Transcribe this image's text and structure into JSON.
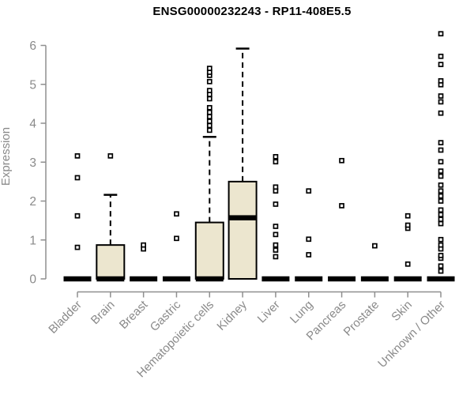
{
  "chart_data": {
    "type": "boxplot",
    "title": "ENSG00000232243 - RP11-408E5.5",
    "ylabel": "Expression",
    "xlabel": "",
    "ylim": [
      0,
      6
    ],
    "yticks": [
      0,
      1,
      2,
      3,
      4,
      5,
      6
    ],
    "grid": false,
    "legend": "none",
    "axis_color": "#8f8f8f",
    "label_color": "#8a8a8a",
    "box_fill": "#ece6cf",
    "box_stroke": "#000000",
    "categories": [
      "Bladder",
      "Brain",
      "Breast",
      "Gastric",
      "Hematopoietic cells",
      "Kidney",
      "Liver",
      "Lung",
      "Pancreas",
      "Prostate",
      "Skin",
      "Unknown / Other"
    ],
    "series": [
      {
        "category": "Bladder",
        "q1": 0,
        "median": 0,
        "q3": 0,
        "whisker_low": 0,
        "whisker_high": 0,
        "outliers": [
          0.81,
          1.62,
          2.6,
          3.16
        ]
      },
      {
        "category": "Brain",
        "q1": 0,
        "median": 0,
        "q3": 0.87,
        "whisker_low": 0,
        "whisker_high": 2.16,
        "outliers": [
          3.16
        ]
      },
      {
        "category": "Breast",
        "q1": 0,
        "median": 0,
        "q3": 0,
        "whisker_low": 0,
        "whisker_high": 0,
        "outliers": [
          0.77,
          0.87
        ]
      },
      {
        "category": "Gastric",
        "q1": 0,
        "median": 0,
        "q3": 0,
        "whisker_low": 0,
        "whisker_high": 0,
        "outliers": [
          1.04,
          1.67
        ]
      },
      {
        "category": "Hematopoietic cells",
        "q1": 0,
        "median": 0,
        "q3": 1.45,
        "whisker_low": 0,
        "whisker_high": 3.65,
        "outliers": [
          3.82,
          3.94,
          4.05,
          4.17,
          4.28,
          4.4,
          4.63,
          4.74,
          4.84,
          5.07,
          5.23,
          5.31,
          5.41
        ]
      },
      {
        "category": "Kidney",
        "q1": 0,
        "median": 1.57,
        "q3": 2.5,
        "whisker_low": 0,
        "whisker_high": 5.92,
        "outliers": []
      },
      {
        "category": "Liver",
        "q1": 0,
        "median": 0,
        "q3": 0,
        "whisker_low": 0,
        "whisker_high": 0,
        "outliers": [
          0.57,
          0.74,
          0.87,
          1.14,
          1.35,
          1.92,
          2.26,
          2.36,
          3.01,
          3.14
        ]
      },
      {
        "category": "Lung",
        "q1": 0,
        "median": 0,
        "q3": 0,
        "whisker_low": 0,
        "whisker_high": 0,
        "outliers": [
          0.62,
          1.02,
          2.26
        ]
      },
      {
        "category": "Pancreas",
        "q1": 0,
        "median": 0,
        "q3": 0,
        "whisker_low": 0,
        "whisker_high": 0,
        "outliers": [
          1.88,
          3.04
        ]
      },
      {
        "category": "Prostate",
        "q1": 0,
        "median": 0,
        "q3": 0,
        "whisker_low": 0,
        "whisker_high": 0,
        "outliers": [
          0.85
        ]
      },
      {
        "category": "Skin",
        "q1": 0,
        "median": 0,
        "q3": 0,
        "whisker_low": 0,
        "whisker_high": 0,
        "outliers": [
          0.38,
          1.3,
          1.38,
          1.62
        ]
      },
      {
        "category": "Unknown / Other",
        "q1": 0,
        "median": 0,
        "q3": 0,
        "whisker_low": 0,
        "whisker_high": 0,
        "outliers": [
          0.2,
          0.33,
          0.53,
          0.6,
          0.77,
          0.87,
          1.01,
          1.42,
          1.53,
          1.65,
          1.77,
          2.0,
          2.13,
          2.26,
          2.41,
          2.64,
          2.77,
          3.01,
          3.31,
          3.5,
          4.26,
          4.55,
          4.7,
          4.99,
          5.09,
          5.51,
          5.72,
          6.3
        ]
      }
    ]
  }
}
